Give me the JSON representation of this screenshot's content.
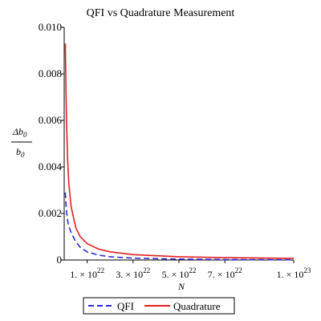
{
  "chart_data": {
    "type": "line",
    "title": "QFI vs Quadrature Measurement",
    "xlabel": "N",
    "ylabel": {
      "numerator": "Δb",
      "numerator_sub": "0",
      "denominator": "b",
      "denominator_sub": "0"
    },
    "xlim": [
      0,
      1e+23
    ],
    "ylim": [
      0,
      0.01
    ],
    "x_ticks": [
      {
        "value": 1e+22,
        "mantissa": "1. × 10",
        "exp": "22"
      },
      {
        "value": 3e+22,
        "mantissa": "3. × 10",
        "exp": "22"
      },
      {
        "value": 5e+22,
        "mantissa": "5. × 10",
        "exp": "22"
      },
      {
        "value": 7e+22,
        "mantissa": "7. × 10",
        "exp": "22"
      },
      {
        "value": 1e+23,
        "mantissa": "1. × 10",
        "exp": "23"
      }
    ],
    "y_ticks": [
      {
        "value": 0,
        "label": "0"
      },
      {
        "value": 0.002,
        "label": "0.002"
      },
      {
        "value": 0.004,
        "label": "0.004"
      },
      {
        "value": 0.006,
        "label": "0.006"
      },
      {
        "value": 0.008,
        "label": "0.008"
      },
      {
        "value": 0.01,
        "label": "0.010"
      }
    ],
    "series": [
      {
        "name": "QFI",
        "color": "#2a2ad6",
        "dash": "dashed",
        "x": [
          5e+20,
          7e+20,
          1e+21,
          1.5e+21,
          2e+21,
          3e+21,
          5e+21,
          7e+21,
          1e+22,
          1.5e+22,
          2e+22,
          3e+22,
          5e+22,
          7e+22,
          1e+23
        ],
        "y": [
          0.0029,
          0.0025,
          0.0021,
          0.0017,
          0.00145,
          0.00118,
          0.00079,
          0.00055,
          0.00035,
          0.00021,
          0.00014,
          8e-05,
          4e-05,
          2e-05,
          1e-05
        ]
      },
      {
        "name": "Quadrature",
        "color": "#e02020",
        "dash": "solid",
        "x": [
          5e+20,
          7e+20,
          1e+21,
          1.5e+21,
          2e+21,
          3e+21,
          5e+21,
          7e+21,
          1e+22,
          1.5e+22,
          2e+22,
          3e+22,
          5e+22,
          7e+22,
          1e+23
        ],
        "y": [
          0.0093,
          0.0078,
          0.006,
          0.0043,
          0.0033,
          0.0023,
          0.0014,
          0.001,
          0.0007,
          0.00047,
          0.00035,
          0.00023,
          0.00014,
          0.0001,
          7e-05
        ]
      }
    ],
    "legend_position": "bottom",
    "grid": false
  }
}
